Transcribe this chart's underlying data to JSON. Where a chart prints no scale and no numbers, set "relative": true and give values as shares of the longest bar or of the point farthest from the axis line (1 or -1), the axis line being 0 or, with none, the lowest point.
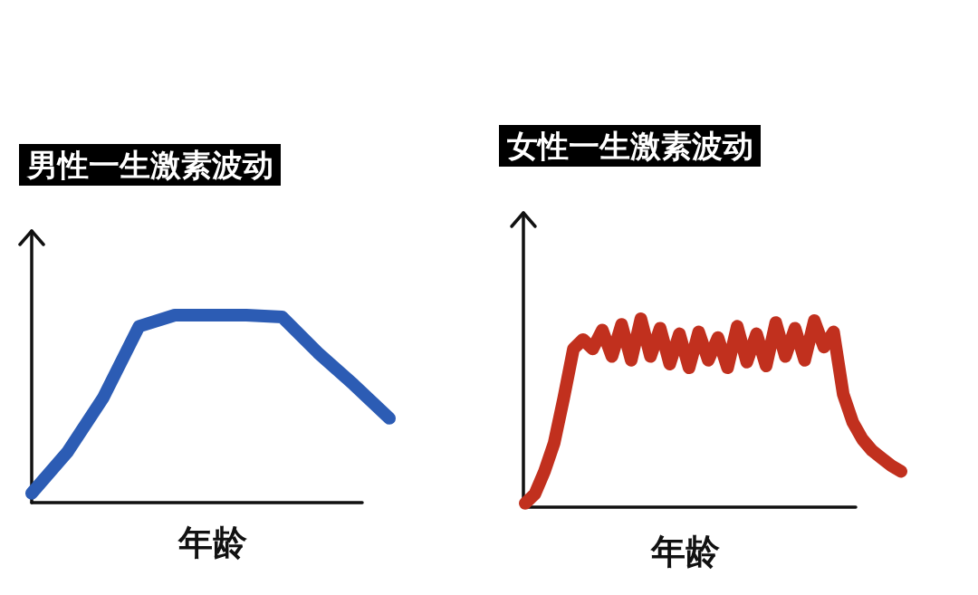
{
  "chart_data": [
    {
      "type": "line",
      "title": "男性一生激素波动",
      "xlabel": "年龄",
      "relative": true,
      "color": "#2c5cb4",
      "categories": [
        null,
        null,
        null,
        null,
        null,
        null,
        null,
        null,
        null,
        null,
        null
      ],
      "values": [
        0.05,
        0.27,
        0.56,
        0.94,
        1,
        1,
        1,
        0.99,
        0.8,
        0.63,
        0.45
      ]
    },
    {
      "type": "line",
      "title": "女性一生激素波动",
      "xlabel": "年龄",
      "relative": true,
      "color": "#c1301e",
      "categories": [
        null,
        null,
        null,
        null,
        null,
        null,
        null,
        null,
        null,
        null,
        null,
        null,
        null,
        null,
        null,
        null,
        null,
        null,
        null,
        null,
        null,
        null,
        null,
        null,
        null,
        null,
        null,
        null,
        null,
        null,
        null,
        null,
        null,
        null,
        null,
        null,
        null,
        null,
        null,
        null
      ],
      "values": [
        0.02,
        0.07,
        0.19,
        0.34,
        0.58,
        0.84,
        0.89,
        0.84,
        0.94,
        0.8,
        0.97,
        0.78,
        1,
        0.8,
        0.95,
        0.76,
        0.92,
        0.74,
        0.93,
        0.78,
        0.9,
        0.74,
        0.96,
        0.77,
        0.92,
        0.75,
        0.98,
        0.8,
        0.95,
        0.78,
        0.99,
        0.85,
        0.93,
        0.6,
        0.45,
        0.36,
        0.3,
        0.26,
        0.22,
        0.19
      ]
    }
  ]
}
